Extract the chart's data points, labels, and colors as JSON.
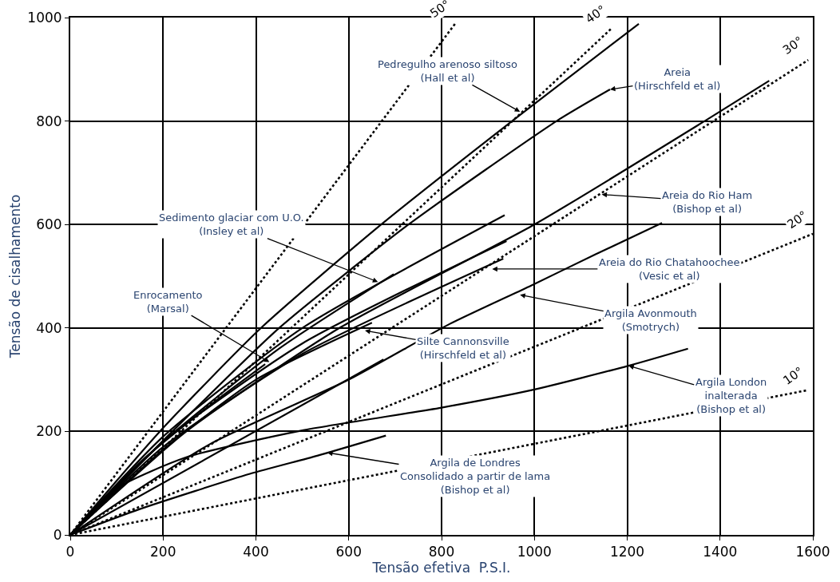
{
  "chart_data": {
    "type": "line",
    "xlabel": "Tensão efetiva  P.S.I.",
    "ylabel": "Tensão de cisalhamento",
    "xlim": [
      0,
      1600
    ],
    "ylim": [
      0,
      1000
    ],
    "xticks": [
      0,
      200,
      400,
      600,
      800,
      1000,
      1200,
      1400,
      1600
    ],
    "yticks": [
      0,
      200,
      400,
      600,
      800,
      1000
    ],
    "grid": true,
    "legend": false,
    "marker": "none",
    "series": [
      {
        "color": "#000000",
        "line_style": "solid",
        "x": [
          0,
          193,
          411,
          670,
          952,
          1225
        ],
        "values": [
          0,
          200,
          400,
          600,
          800,
          988
        ]
      },
      {
        "color": "#000000",
        "line_style": "solid",
        "x": [
          0,
          220,
          450,
          729,
          1048,
          1163
        ],
        "values": [
          0,
          200,
          400,
          600,
          800,
          861
        ]
      },
      {
        "color": "#000000",
        "line_style": "solid",
        "x": [
          0,
          250,
          580,
          1000,
          1367,
          1506
        ],
        "values": [
          0,
          200,
          400,
          600,
          800,
          878
        ]
      },
      {
        "color": "#000000",
        "line_style": "solid",
        "x": [
          0,
          200,
          500,
          936
        ],
        "values": [
          0,
          190,
          400,
          618
        ]
      },
      {
        "color": "#000000",
        "line_style": "solid",
        "x": [
          0,
          200,
          500,
          940
        ],
        "values": [
          0,
          180,
          370,
          568
        ]
      },
      {
        "color": "#000000",
        "line_style": "solid",
        "x": [
          0,
          200,
          500,
          933
        ],
        "values": [
          0,
          170,
          350,
          534
        ]
      },
      {
        "color": "#000000",
        "line_style": "solid",
        "x": [
          0,
          200,
          450,
          697
        ],
        "values": [
          0,
          180,
          360,
          504
        ]
      },
      {
        "color": "#000000",
        "line_style": "solid",
        "x": [
          0,
          200,
          400,
          650
        ],
        "values": [
          0,
          165,
          300,
          410
        ]
      },
      {
        "color": "#000000",
        "line_style": "solid",
        "x": [
          0,
          150,
          300,
          420
        ],
        "values": [
          0,
          140,
          250,
          330
        ]
      },
      {
        "color": "#000000",
        "line_style": "solid",
        "x": [
          0,
          675
        ],
        "values": [
          0,
          339
        ]
      },
      {
        "color": "#000000",
        "line_style": "solid",
        "x": [
          0,
          300,
          600,
          818,
          993,
          1131,
          1275
        ],
        "values": [
          0,
          175,
          300,
          408,
          482,
          542,
          603
        ]
      },
      {
        "color": "#000000",
        "line_style": "solid",
        "x": [
          0,
          100,
          250,
          500,
          800,
          1000,
          1203,
          1331
        ],
        "values": [
          0,
          90,
          150,
          202,
          246,
          281,
          327,
          360
        ]
      },
      {
        "color": "#000000",
        "line_style": "solid",
        "x": [
          0,
          150,
          387,
          532,
          680
        ],
        "values": [
          0,
          50,
          118,
          153,
          192
        ]
      },
      {
        "name": "50°",
        "color": "#000000",
        "line_style": "dotted",
        "x": [
          0,
          830
        ],
        "values": [
          0,
          989
        ]
      },
      {
        "name": "40°",
        "color": "#000000",
        "line_style": "dotted",
        "x": [
          0,
          1165
        ],
        "values": [
          0,
          978
        ]
      },
      {
        "name": "30°",
        "color": "#000000",
        "line_style": "dotted",
        "x": [
          0,
          1590
        ],
        "values": [
          0,
          918
        ]
      },
      {
        "name": "20°",
        "color": "#000000",
        "line_style": "dotted",
        "x": [
          0,
          1600
        ],
        "values": [
          0,
          582
        ]
      },
      {
        "name": "10°",
        "color": "#000000",
        "line_style": "dotted",
        "x": [
          0,
          1590
        ],
        "values": [
          0,
          280
        ]
      }
    ],
    "annotations": [
      {
        "text": "Pedregulho arenoso siltoso\n(Hall et al)",
        "x": 969,
        "y": 818
      },
      {
        "text": "Areia\n(Hirschfeld et al)",
        "x": 1163,
        "y": 861
      },
      {
        "text": "Areia do Rio Ham\n(Bishop et al)",
        "x": 1145,
        "y": 658
      },
      {
        "text": "Areia do Rio Chatahoochee\n(Vesic et al)",
        "x": 909,
        "y": 514
      },
      {
        "text": "Argila Avonmouth\n(Smotrych)",
        "x": 969,
        "y": 464
      },
      {
        "text": "Sedimento glaciar com U.O.\n(Insley et al)",
        "x": 663,
        "y": 489
      },
      {
        "text": "Enrocamento\n(Marsal)",
        "x": 429,
        "y": 334
      },
      {
        "text": "Silte Cannonsville\n(Hirschfeld et al)",
        "x": 635,
        "y": 395
      },
      {
        "text": "Argila London\ninalterada\n(Bishop et al)",
        "x": 1203,
        "y": 327
      },
      {
        "text": "Argila de Londres\nConsolidado a partir de lama\n(Bishop et al)",
        "x": 554,
        "y": 159
      }
    ]
  }
}
